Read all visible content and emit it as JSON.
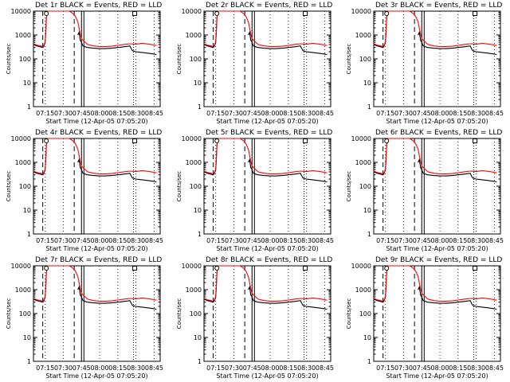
{
  "chart_data": [
    {
      "type": "line",
      "title": "Det 1r BLACK = Events, RED = LLD"
    },
    {
      "type": "line",
      "title": "Det 2r BLACK = Events, RED = LLD"
    },
    {
      "type": "line",
      "title": "Det 3r BLACK = Events, RED = LLD"
    },
    {
      "type": "line",
      "title": "Det 4r BLACK = Events, RED = LLD"
    },
    {
      "type": "line",
      "title": "Det 5r BLACK = Events, RED = LLD"
    },
    {
      "type": "line",
      "title": "Det 6r BLACK = Events, RED = LLD"
    },
    {
      "type": "line",
      "title": "Det 7r BLACK = Events, RED = LLD"
    },
    {
      "type": "line",
      "title": "Det 8r BLACK = Events, RED = LLD"
    },
    {
      "type": "line",
      "title": "Det 9r BLACK = Events, RED = LLD"
    }
  ],
  "shared": {
    "xlabel": "Start Time (12-Apr-05 07:05:20)",
    "ylabel": "Counts/sec",
    "x_ticks": [
      "07:15",
      "07:30",
      "07:45",
      "08:00",
      "08:15",
      "08:30",
      "08:45"
    ],
    "y_ticks": [
      "1",
      "10",
      "100",
      "1000",
      "10000"
    ],
    "y_scale": "log",
    "ylim": [
      1,
      10000
    ],
    "xlim": [
      "07:05:20",
      "08:50:00"
    ],
    "series": [
      {
        "color": "#000000",
        "x": [
          "07:05:20",
          "07:08",
          "07:11",
          "07:13",
          "07:14",
          "07:15",
          "07:15:30",
          "07:16",
          "07:17",
          "07:18",
          "07:19",
          "07:20",
          "07:20:30",
          "07:22",
          "07:40",
          "07:42",
          "07:43",
          "07:43:30",
          "07:44",
          "07:45",
          "07:46",
          "07:48",
          "07:50",
          "07:55",
          "08:00",
          "08:05",
          "08:10",
          "08:15",
          "08:20",
          "08:25",
          "08:27",
          "08:30",
          "08:33",
          "08:37",
          "08:41",
          "08:45",
          "08:47"
        ],
        "values": [
          400,
          350,
          320,
          300,
          350,
          500,
          1200,
          5000,
          10000,
          10000,
          10000,
          10000,
          10000,
          null,
          null,
          1000,
          1300,
          900,
          600,
          500,
          360,
          320,
          300,
          280,
          270,
          270,
          280,
          300,
          320,
          350,
          220,
          200,
          190,
          180,
          170,
          160,
          150
        ]
      },
      {
        "color": "#ff0000",
        "x": [
          "07:05:20",
          "07:08",
          "07:11",
          "07:13",
          "07:14",
          "07:15",
          "07:15:30",
          "07:16",
          "07:17",
          "07:18",
          "07:19",
          "07:20",
          "07:30",
          "07:35",
          "07:38",
          "07:40",
          "07:42",
          "07:43",
          "07:44",
          "07:45",
          "07:48",
          "07:50",
          "07:55",
          "08:00",
          "08:05",
          "08:10",
          "08:15",
          "08:20",
          "08:25",
          "08:30",
          "08:35",
          "08:40",
          "08:45",
          "08:47"
        ],
        "values": [
          430,
          380,
          350,
          330,
          380,
          520,
          1300,
          5200,
          10000,
          10000,
          10000,
          10000,
          10000,
          10000,
          8000,
          6000,
          3500,
          2000,
          1100,
          700,
          500,
          400,
          350,
          330,
          330,
          340,
          370,
          400,
          430,
          410,
          450,
          420,
          380,
          360
        ]
      }
    ],
    "vlines": [
      {
        "x": "07:13",
        "style": "dashed"
      },
      {
        "x": "07:39",
        "style": "dashed"
      },
      {
        "x": "07:45",
        "style": "solid"
      },
      {
        "x": "07:47",
        "style": "solid"
      },
      {
        "x": "08:28",
        "style": "dotted"
      }
    ],
    "markers": [
      {
        "x": "07:16",
        "shape": "circle"
      },
      {
        "x": "08:29",
        "shape": "square"
      }
    ]
  }
}
